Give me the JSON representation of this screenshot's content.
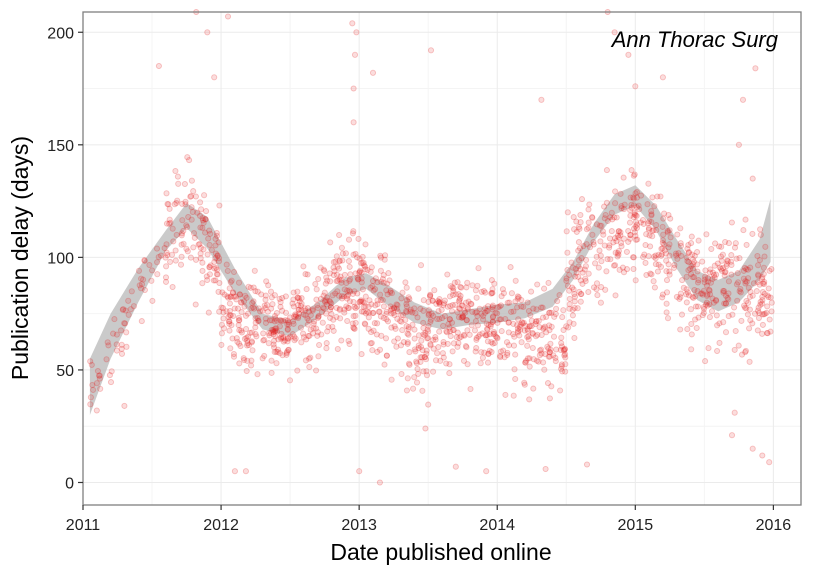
{
  "chart_data": {
    "type": "scatter",
    "title": "",
    "annotation": "Ann Thorac Surg",
    "xlabel": "Date published online",
    "ylabel": "Publication delay (days)",
    "xlim": [
      2011.0,
      2016.2
    ],
    "ylim": [
      -10,
      209
    ],
    "x_ticks": [
      2011,
      2012,
      2013,
      2014,
      2015,
      2016
    ],
    "x_tick_labels": [
      "2011",
      "2012",
      "2013",
      "2014",
      "2015",
      "2016"
    ],
    "y_ticks": [
      0,
      50,
      100,
      150,
      200
    ],
    "y_tick_labels": [
      "0",
      "50",
      "100",
      "150",
      "200"
    ],
    "grid": true,
    "point_color": "#e41a1c",
    "point_alpha": 0.15,
    "ribbon_color": "#bdbdbd",
    "smooth": {
      "method": "loess",
      "x": [
        2011.05,
        2011.2,
        2011.4,
        2011.6,
        2011.75,
        2011.9,
        2012.1,
        2012.3,
        2012.5,
        2012.7,
        2012.9,
        2013.05,
        2013.2,
        2013.4,
        2013.6,
        2013.8,
        2014.0,
        2014.2,
        2014.4,
        2014.55,
        2014.7,
        2014.85,
        2015.0,
        2015.15,
        2015.3,
        2015.45,
        2015.6,
        2015.75,
        2015.9,
        2015.98
      ],
      "upper": [
        55,
        75,
        95,
        112,
        124,
        118,
        95,
        75,
        72,
        80,
        91,
        93,
        88,
        80,
        75,
        77,
        79,
        80,
        86,
        98,
        115,
        128,
        132,
        123,
        108,
        94,
        90,
        94,
        108,
        126
      ],
      "lower": [
        30,
        55,
        80,
        103,
        113,
        104,
        84,
        68,
        65,
        73,
        83,
        86,
        79,
        71,
        68,
        70,
        71,
        73,
        78,
        90,
        107,
        119,
        123,
        112,
        95,
        81,
        76,
        80,
        90,
        98
      ]
    },
    "point_density": [
      {
        "start": 2011.05,
        "end": 2011.6,
        "center": [
          40,
          105
        ],
        "spread": 14,
        "count": 60
      },
      {
        "start": 2011.6,
        "end": 2012.0,
        "center": [
          110,
          118,
          95
        ],
        "spread": 22,
        "count": 120
      },
      {
        "start": 2012.0,
        "end": 2012.5,
        "center": [
          80,
          68,
          65
        ],
        "spread": 20,
        "count": 200
      },
      {
        "start": 2012.5,
        "end": 2013.0,
        "center": [
          72,
          88
        ],
        "spread": 20,
        "count": 200
      },
      {
        "start": 2013.0,
        "end": 2013.5,
        "center": [
          85,
          62
        ],
        "spread": 22,
        "count": 200
      },
      {
        "start": 2013.5,
        "end": 2014.0,
        "center": [
          75,
          72
        ],
        "spread": 18,
        "count": 200
      },
      {
        "start": 2014.0,
        "end": 2014.5,
        "center": [
          70,
          60
        ],
        "spread": 20,
        "count": 170
      },
      {
        "start": 2014.5,
        "end": 2015.0,
        "center": [
          90,
          120
        ],
        "spread": 24,
        "count": 170
      },
      {
        "start": 2015.0,
        "end": 2015.5,
        "center": [
          115,
          85
        ],
        "spread": 22,
        "count": 170
      },
      {
        "start": 2015.5,
        "end": 2016.0,
        "center": [
          88,
          85
        ],
        "spread": 24,
        "count": 180
      }
    ],
    "outliers": [
      [
        2011.82,
        209
      ],
      [
        2011.9,
        200
      ],
      [
        2011.95,
        180
      ],
      [
        2012.05,
        207
      ],
      [
        2012.95,
        204
      ],
      [
        2012.98,
        200
      ],
      [
        2012.97,
        190
      ],
      [
        2012.96,
        175
      ],
      [
        2012.96,
        160
      ],
      [
        2014.8,
        209
      ],
      [
        2014.85,
        200
      ],
      [
        2014.95,
        190
      ],
      [
        2015.0,
        176
      ],
      [
        2015.87,
        184
      ],
      [
        2015.78,
        170
      ],
      [
        2011.55,
        185
      ],
      [
        2013.52,
        192
      ],
      [
        2013.1,
        182
      ],
      [
        2014.32,
        170
      ],
      [
        2015.2,
        180
      ],
      [
        2015.75,
        150
      ],
      [
        2015.85,
        135
      ],
      [
        2012.1,
        5
      ],
      [
        2012.18,
        5
      ],
      [
        2013.15,
        0
      ],
      [
        2013.48,
        24
      ],
      [
        2013.7,
        7
      ],
      [
        2013.92,
        5
      ],
      [
        2014.35,
        6
      ],
      [
        2014.65,
        8
      ],
      [
        2015.7,
        21
      ],
      [
        2015.72,
        31
      ],
      [
        2015.85,
        15
      ],
      [
        2015.92,
        12
      ],
      [
        2015.97,
        9
      ],
      [
        2011.3,
        34
      ],
      [
        2011.1,
        32
      ],
      [
        2013.0,
        5
      ]
    ]
  }
}
